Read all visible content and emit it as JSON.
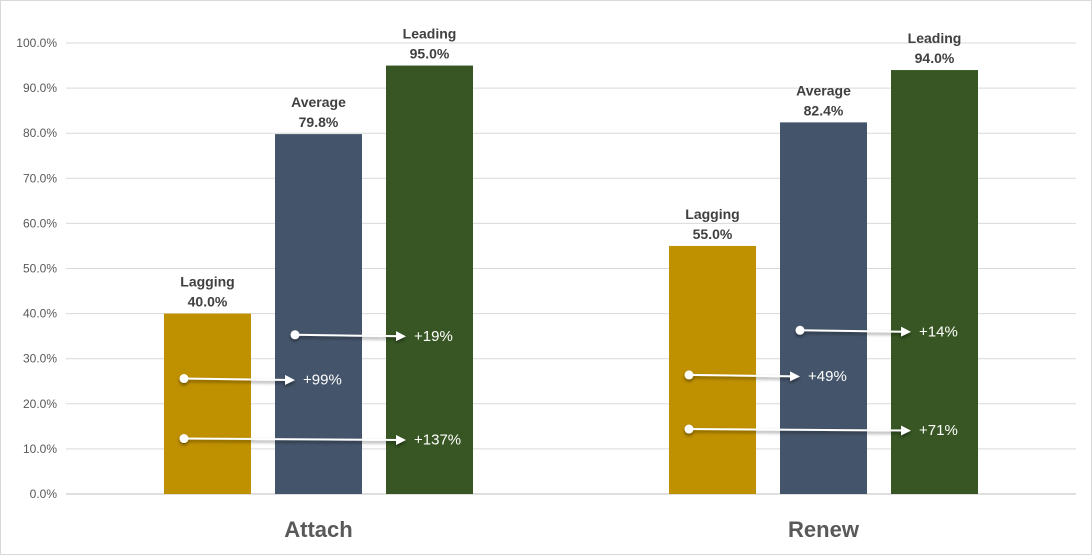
{
  "chart_data": {
    "type": "bar",
    "categories": [
      "Attach",
      "Renew"
    ],
    "series": [
      {
        "name": "Lagging",
        "values": [
          40.0,
          55.0
        ],
        "color": "#bf9000"
      },
      {
        "name": "Average",
        "values": [
          79.8,
          82.4
        ],
        "color": "#44546a"
      },
      {
        "name": "Leading",
        "values": [
          95.0,
          94.0
        ],
        "color": "#375623"
      }
    ],
    "data_labels": [
      [
        "40.0%",
        "55.0%"
      ],
      [
        "79.8%",
        "82.4%"
      ],
      [
        "95.0%",
        "94.0%"
      ]
    ],
    "ylim": [
      0,
      100
    ],
    "yticks": [
      "0.0%",
      "10.0%",
      "20.0%",
      "30.0%",
      "40.0%",
      "50.0%",
      "60.0%",
      "70.0%",
      "80.0%",
      "90.0%",
      "100.0%"
    ],
    "grid": true,
    "legend": "none",
    "annotations": [
      {
        "category": "Attach",
        "from": "Average",
        "to": "Leading",
        "label": "+19%",
        "y": 35.3
      },
      {
        "category": "Attach",
        "from": "Lagging",
        "to": "Average",
        "label": "+99%",
        "y": 25.6
      },
      {
        "category": "Attach",
        "from": "Lagging",
        "to": "Leading",
        "label": "+137%",
        "y": 12.3
      },
      {
        "category": "Renew",
        "from": "Average",
        "to": "Leading",
        "label": "+14%",
        "y": 36.3
      },
      {
        "category": "Renew",
        "from": "Lagging",
        "to": "Average",
        "label": "+49%",
        "y": 26.4
      },
      {
        "category": "Renew",
        "from": "Lagging",
        "to": "Leading",
        "label": "+71%",
        "y": 14.4
      }
    ]
  }
}
